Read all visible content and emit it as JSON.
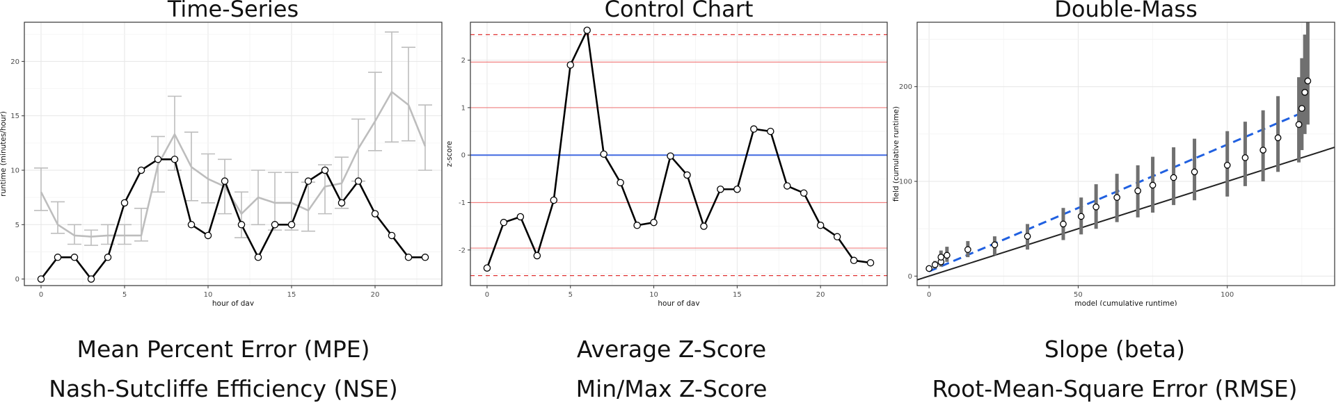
{
  "chart_data": [
    {
      "type": "line",
      "title": "Time-Series",
      "xlabel": "hour of day",
      "ylabel": "runtime (minutes/hour)",
      "xlim": [
        -1,
        24
      ],
      "ylim": [
        -0.6,
        23.6
      ],
      "xticks": [
        0,
        5,
        10,
        15,
        20
      ],
      "yticks": [
        0,
        5,
        10,
        15,
        20
      ],
      "grid": true,
      "legend": "none",
      "x": [
        0,
        1,
        2,
        3,
        4,
        5,
        6,
        7,
        8,
        9,
        10,
        11,
        12,
        13,
        14,
        15,
        16,
        17,
        18,
        19,
        20,
        21,
        22,
        23
      ],
      "series": [
        {
          "color": "#000000",
          "markers": true,
          "values": [
            0,
            2,
            2,
            0,
            2,
            7,
            10,
            11,
            11,
            5,
            4,
            9,
            5,
            2,
            5,
            5,
            9,
            10,
            7,
            9,
            6,
            4,
            2,
            2
          ]
        },
        {
          "color": "#bdbdbd",
          "markers": false,
          "values": [
            8,
            5,
            4,
            3.9,
            4,
            4,
            4,
            10.5,
            13.3,
            10.3,
            9.2,
            8.5,
            6,
            7.5,
            7,
            7,
            6.3,
            8.5,
            8.8,
            12,
            14.5,
            17.2,
            16,
            12.2
          ],
          "err_low": [
            6.3,
            4.2,
            3.2,
            3.1,
            3.2,
            3.2,
            3.5,
            8,
            10,
            7.2,
            7,
            6,
            3.8,
            5,
            4.5,
            4.5,
            4.4,
            6,
            6.5,
            9,
            11.8,
            12.6,
            12.7,
            10
          ],
          "err_high": [
            10.2,
            7.1,
            5,
            4.5,
            5,
            5,
            6.5,
            13.1,
            16.8,
            13.5,
            11.5,
            11,
            8,
            10,
            9.8,
            9.8,
            8.9,
            10.5,
            11.2,
            14.7,
            19,
            22.7,
            21.3,
            16
          ]
        }
      ]
    },
    {
      "type": "line",
      "title": "Control Chart",
      "xlabel": "hour of day",
      "ylabel": "z-score",
      "xlim": [
        -1,
        24
      ],
      "ylim": [
        -2.75,
        2.8
      ],
      "xticks": [
        0,
        5,
        10,
        15,
        20
      ],
      "yticks": [
        -2,
        -1,
        0,
        1,
        2
      ],
      "grid": true,
      "legend": "none",
      "x": [
        0,
        1,
        2,
        3,
        4,
        5,
        6,
        7,
        8,
        9,
        10,
        11,
        12,
        13,
        14,
        15,
        16,
        17,
        18,
        19,
        20,
        21,
        22,
        23
      ],
      "series": [
        {
          "color": "#000000",
          "markers": true,
          "values": [
            -2.38,
            -1.42,
            -1.3,
            -2.12,
            -0.95,
            1.9,
            2.63,
            0.02,
            -0.58,
            -1.48,
            -1.42,
            -0.02,
            -0.42,
            -1.5,
            -0.72,
            -0.72,
            0.55,
            0.5,
            -0.65,
            -0.8,
            -1.48,
            -1.72,
            -2.22,
            -2.27
          ]
        }
      ],
      "reference_lines": [
        {
          "y": 0,
          "color": "#4169e1",
          "style": "solid"
        },
        {
          "y": 1,
          "color": "#f08080",
          "style": "solid"
        },
        {
          "y": -1,
          "color": "#f08080",
          "style": "solid"
        },
        {
          "y": 1.96,
          "color": "#f08080",
          "style": "solid"
        },
        {
          "y": -1.96,
          "color": "#f08080",
          "style": "solid"
        },
        {
          "y": 2.54,
          "color": "#e03030",
          "style": "dashed"
        },
        {
          "y": -2.54,
          "color": "#e03030",
          "style": "dashed"
        }
      ]
    },
    {
      "type": "scatter",
      "title": "Double-Mass",
      "xlabel": "model (cumulative runtime)",
      "ylabel": "field (cumulative runtime)",
      "xlim": [
        -4,
        136
      ],
      "ylim": [
        -10,
        268
      ],
      "xticks": [
        0,
        50,
        100
      ],
      "yticks": [
        0,
        100,
        200
      ],
      "grid": true,
      "legend": "none",
      "series": [
        {
          "color": "#ffffff",
          "markers": true,
          "x": [
            0,
            2,
            4,
            4,
            6,
            13,
            22,
            33,
            45,
            51,
            56,
            63,
            70,
            75,
            82,
            89,
            100,
            106,
            112,
            117,
            124,
            125,
            126,
            127
          ],
          "values": [
            8,
            12,
            15,
            20,
            22,
            28,
            33,
            42,
            55,
            63,
            73,
            83,
            90,
            96,
            104,
            110,
            117,
            125,
            133,
            146,
            160,
            177,
            194,
            206
          ],
          "err_low": [
            6,
            8,
            10,
            13,
            15,
            20,
            22,
            28,
            38,
            44,
            50,
            57,
            62,
            67,
            75,
            80,
            84,
            95,
            100,
            110,
            120,
            133,
            150,
            160
          ],
          "err_high": [
            10,
            16,
            22,
            27,
            31,
            37,
            42,
            55,
            72,
            83,
            97,
            108,
            117,
            126,
            136,
            145,
            153,
            163,
            175,
            190,
            210,
            230,
            255,
            268
          ]
        },
        {
          "color": "#2060e0",
          "style": "dashed",
          "x": [
            0,
            127
          ],
          "values": [
            5,
            175
          ]
        },
        {
          "color": "#222222",
          "style": "solid",
          "x": [
            -4,
            136
          ],
          "values": [
            -4,
            136
          ]
        }
      ]
    }
  ],
  "captions": {
    "left": [
      "Mean Percent Error (MPE)",
      "Nash-Sutcliffe Efficiency (NSE)"
    ],
    "middle": [
      "Average Z-Score",
      "Min/Max Z-Score"
    ],
    "right": [
      "Slope (beta)",
      "Root-Mean-Square Error (RMSE)"
    ]
  }
}
